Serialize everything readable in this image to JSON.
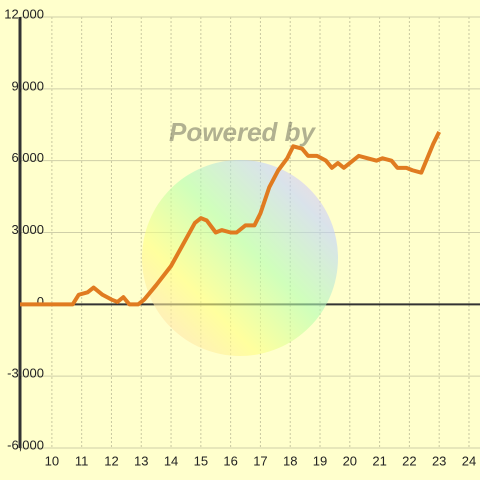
{
  "chart_data": {
    "type": "line",
    "watermark": "Powered by",
    "x": [
      8.93,
      10.7,
      10.9,
      11.2,
      11.4,
      11.7,
      12.0,
      12.2,
      12.4,
      12.6,
      12.9,
      13.1,
      13.5,
      14.0,
      14.4,
      14.8,
      15.0,
      15.2,
      15.5,
      15.7,
      16.0,
      16.2,
      16.5,
      16.8,
      17.0,
      17.3,
      17.6,
      17.9,
      18.1,
      18.4,
      18.6,
      18.9,
      19.2,
      19.4,
      19.6,
      19.8,
      20.1,
      20.3,
      20.6,
      20.9,
      21.1,
      21.4,
      21.6,
      21.9,
      22.1,
      22.4,
      22.6,
      22.8,
      23.0
    ],
    "series": [
      {
        "color": "#e07b20",
        "values": [
          0,
          0,
          400,
          500,
          700,
          400,
          200,
          100,
          300,
          0,
          0,
          200,
          800,
          1600,
          2500,
          3400,
          3600,
          3500,
          3000,
          3100,
          3000,
          3000,
          3300,
          3300,
          3800,
          4900,
          5600,
          6100,
          6600,
          6500,
          6200,
          6200,
          6000,
          5700,
          5900,
          5700,
          6000,
          6200,
          6100,
          6000,
          6100,
          6000,
          5700,
          5700,
          5600,
          5500,
          6100,
          6700,
          7200
        ]
      }
    ],
    "xlim": [
      8.93,
      24.37
    ],
    "xticks": [
      10,
      11,
      12,
      13,
      14,
      15,
      16,
      17,
      18,
      19,
      20,
      21,
      22,
      23,
      24
    ],
    "ylim": [
      -6000,
      12000
    ],
    "yticks": [
      {
        "value": -6000,
        "label": "-6,000"
      },
      {
        "value": -3000,
        "label": "-3,000"
      },
      0,
      {
        "value": 3000,
        "label": "3,000"
      },
      {
        "value": 6000,
        "label": "6,000"
      },
      {
        "value": 9000,
        "label": "9,000"
      },
      {
        "value": 12000,
        "label": "12,000"
      }
    ],
    "grid": true
  }
}
